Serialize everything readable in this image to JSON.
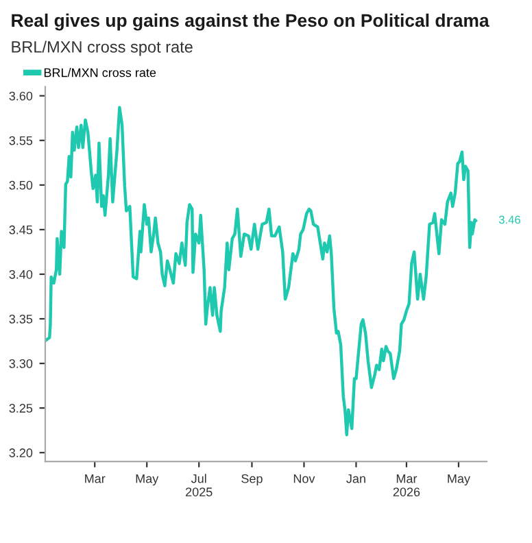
{
  "chart_data": {
    "type": "line",
    "title": "Real gives up gains against the Peso on Political drama",
    "subtitle": "BRL/MXN cross spot rate",
    "x": [
      "2025-01-03",
      "2025-01-07",
      "2025-01-08",
      "2025-01-09",
      "2025-01-12",
      "2025-01-15",
      "2025-01-16",
      "2025-01-19",
      "2025-01-21",
      "2025-01-24",
      "2025-01-26",
      "2025-01-28",
      "2025-01-30",
      "2025-02-01",
      "2025-02-03",
      "2025-02-05",
      "2025-02-08",
      "2025-02-10",
      "2025-02-13",
      "2025-02-15",
      "2025-02-18",
      "2025-02-21",
      "2025-02-25",
      "2025-02-27",
      "2025-03-02",
      "2025-03-04",
      "2025-03-06",
      "2025-03-09",
      "2025-03-11",
      "2025-03-13",
      "2025-03-17",
      "2025-03-19",
      "2025-03-22",
      "2025-03-25",
      "2025-03-27",
      "2025-03-30",
      "2025-04-02",
      "2025-04-05",
      "2025-04-07",
      "2025-04-11",
      "2025-04-15",
      "2025-04-19",
      "2025-04-23",
      "2025-04-24",
      "2025-04-28",
      "2025-05-01",
      "2025-05-03",
      "2025-05-06",
      "2025-05-09",
      "2025-05-11",
      "2025-05-14",
      "2025-05-17",
      "2025-05-19",
      "2025-05-22",
      "2025-05-25",
      "2025-05-28",
      "2025-06-01",
      "2025-06-04",
      "2025-06-08",
      "2025-06-11",
      "2025-06-15",
      "2025-06-17",
      "2025-06-20",
      "2025-06-23",
      "2025-06-24",
      "2025-06-27",
      "2025-07-01",
      "2025-07-03",
      "2025-07-07",
      "2025-07-09",
      "2025-07-11",
      "2025-07-14",
      "2025-07-17",
      "2025-07-19",
      "2025-07-22",
      "2025-07-26",
      "2025-07-27",
      "2025-07-31",
      "2025-08-03",
      "2025-08-05",
      "2025-08-09",
      "2025-08-12",
      "2025-08-15",
      "2025-08-19",
      "2025-08-23",
      "2025-08-28",
      "2025-08-31",
      "2025-09-04",
      "2025-09-08",
      "2025-09-13",
      "2025-09-18",
      "2025-09-21",
      "2025-09-24",
      "2025-09-28",
      "2025-10-03",
      "2025-10-07",
      "2025-10-10",
      "2025-10-14",
      "2025-10-19",
      "2025-10-22",
      "2025-10-26",
      "2025-10-28",
      "2025-10-31",
      "2025-11-04",
      "2025-11-07",
      "2025-11-09",
      "2025-11-12",
      "2025-11-17",
      "2025-11-20",
      "2025-11-23",
      "2025-11-25",
      "2025-11-28",
      "2025-12-01",
      "2025-12-03",
      "2025-12-06",
      "2025-12-09",
      "2025-12-11",
      "2025-12-14",
      "2025-12-17",
      "2025-12-19",
      "2025-12-21",
      "2025-12-23",
      "2025-12-27",
      "2025-12-30",
      "2026-01-01",
      "2026-01-04",
      "2026-01-07",
      "2026-01-09",
      "2026-01-12",
      "2026-01-15",
      "2026-01-19",
      "2026-01-23",
      "2026-01-25",
      "2026-01-28",
      "2026-01-31",
      "2026-02-02",
      "2026-02-05",
      "2026-02-07",
      "2026-02-10",
      "2026-02-14",
      "2026-02-17",
      "2026-02-21",
      "2026-02-23",
      "2026-02-26",
      "2026-03-01",
      "2026-03-04",
      "2026-03-07",
      "2026-03-10",
      "2026-03-14",
      "2026-03-17",
      "2026-03-21",
      "2026-03-24",
      "2026-03-28",
      "2026-04-01",
      "2026-04-03",
      "2026-04-08",
      "2026-04-11",
      "2026-04-15",
      "2026-04-18",
      "2026-04-22",
      "2026-04-24",
      "2026-04-27",
      "2026-04-30",
      "2026-05-02",
      "2026-05-05",
      "2026-05-07",
      "2026-05-09",
      "2026-05-12",
      "2026-05-14",
      "2026-05-16",
      "2026-05-17",
      "2026-05-20",
      "2026-05-21"
    ],
    "series": [
      {
        "name": "BRL/MXN cross rate",
        "color": "#1fc9b0",
        "values": [
          3.326,
          3.329,
          3.344,
          3.397,
          3.39,
          3.405,
          3.44,
          3.4,
          3.448,
          3.43,
          3.501,
          3.504,
          3.532,
          3.509,
          3.559,
          3.539,
          3.565,
          3.542,
          3.567,
          3.542,
          3.573,
          3.559,
          3.514,
          3.496,
          3.511,
          3.481,
          3.547,
          3.476,
          3.488,
          3.466,
          3.511,
          3.552,
          3.481,
          3.516,
          3.539,
          3.587,
          3.567,
          3.499,
          3.471,
          3.476,
          3.397,
          3.395,
          3.448,
          3.425,
          3.478,
          3.456,
          3.463,
          3.425,
          3.445,
          3.463,
          3.435,
          3.425,
          3.4,
          3.387,
          3.415,
          3.405,
          3.39,
          3.423,
          3.412,
          3.435,
          3.41,
          3.458,
          3.478,
          3.473,
          3.402,
          3.445,
          3.435,
          3.466,
          3.405,
          3.344,
          3.364,
          3.385,
          3.354,
          3.385,
          3.354,
          3.336,
          3.359,
          3.385,
          3.435,
          3.405,
          3.44,
          3.445,
          3.473,
          3.42,
          3.445,
          3.443,
          3.428,
          3.456,
          3.428,
          3.456,
          3.458,
          3.473,
          3.443,
          3.443,
          3.453,
          3.425,
          3.372,
          3.385,
          3.423,
          3.415,
          3.428,
          3.445,
          3.45,
          3.468,
          3.473,
          3.471,
          3.456,
          3.453,
          3.435,
          3.417,
          3.435,
          3.425,
          3.443,
          3.423,
          3.362,
          3.334,
          3.336,
          3.321,
          3.263,
          3.248,
          3.22,
          3.248,
          3.227,
          3.283,
          3.283,
          3.314,
          3.344,
          3.349,
          3.334,
          3.303,
          3.273,
          3.288,
          3.298,
          3.293,
          3.316,
          3.303,
          3.319,
          3.314,
          3.311,
          3.283,
          3.293,
          3.314,
          3.344,
          3.349,
          3.359,
          3.367,
          3.412,
          3.425,
          3.372,
          3.4,
          3.372,
          3.397,
          3.456,
          3.458,
          3.468,
          3.423,
          3.461,
          3.456,
          3.481,
          3.491,
          3.476,
          3.491,
          3.524,
          3.526,
          3.537,
          3.506,
          3.521,
          3.516,
          3.43,
          3.458,
          3.445,
          3.461,
          3.46
        ]
      }
    ],
    "annotations": [
      {
        "text": "3.46",
        "x": "2026-05-21",
        "y": 3.46
      }
    ],
    "xlim": [
      "2025-01-02",
      "2026-06-03"
    ],
    "xticks": [
      {
        "value": "2025-03-01",
        "label": "Mar"
      },
      {
        "value": "2025-05-01",
        "label": "May"
      },
      {
        "value": "2025-07-01",
        "label": "Jul\n2025"
      },
      {
        "value": "2025-09-01",
        "label": "Sep"
      },
      {
        "value": "2025-11-01",
        "label": "Nov"
      },
      {
        "value": "2026-01-01",
        "label": "Jan"
      },
      {
        "value": "2026-03-01",
        "label": "Mar\n2026"
      },
      {
        "value": "2026-05-01",
        "label": "May"
      }
    ],
    "ylim": [
      3.19,
      3.61
    ],
    "yticks": [
      {
        "value": 3.2,
        "label": "3.20"
      },
      {
        "value": 3.25,
        "label": "3.25"
      },
      {
        "value": 3.3,
        "label": "3.30"
      },
      {
        "value": 3.35,
        "label": "3.35"
      },
      {
        "value": 3.4,
        "label": "3.40"
      },
      {
        "value": 3.45,
        "label": "3.45"
      },
      {
        "value": 3.5,
        "label": "3.50"
      },
      {
        "value": 3.55,
        "label": "3.55"
      },
      {
        "value": 3.6,
        "label": "3.60"
      }
    ],
    "grid": false,
    "legend": "top left",
    "line_style": "solid",
    "marker": "none"
  }
}
